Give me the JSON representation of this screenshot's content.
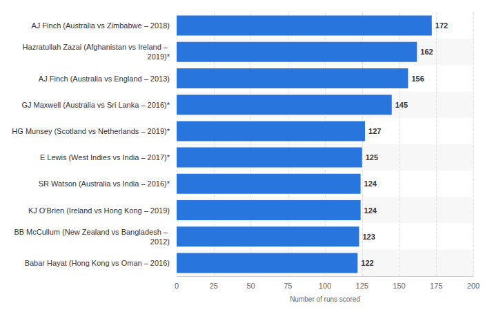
{
  "chart_data": {
    "type": "bar",
    "orientation": "horizontal",
    "x_label": "Number of runs scored",
    "categories": [
      "AJ Finch (Australia vs Zimbabwe – 2018)",
      "Hazratullah Zazai (Afghanistan vs Ireland – 2019)*",
      "AJ Finch (Australia vs England – 2013)",
      "GJ Maxwell (Australia vs Sri Lanka – 2016)*",
      "HG Munsey (Scotland vs Netherlands – 2019)*",
      "E Lewis (West Indies vs India – 2017)*",
      "SR Watson (Australia vs India – 2016)*",
      "KJ O'Brien (Ireland vs Hong Kong – 2019)",
      "BB McCullum (New Zealand vs Bangladesh – 2012)",
      "Babar Hayat (Hong Kong vs Oman – 2016)"
    ],
    "values": [
      172,
      162,
      156,
      145,
      127,
      125,
      124,
      124,
      123,
      122
    ],
    "color": "#2876dd",
    "xlim": [
      0,
      200
    ],
    "xticks": [
      0,
      25,
      50,
      75,
      100,
      125,
      150,
      175,
      200
    ],
    "grid": true,
    "data_labels": true
  }
}
